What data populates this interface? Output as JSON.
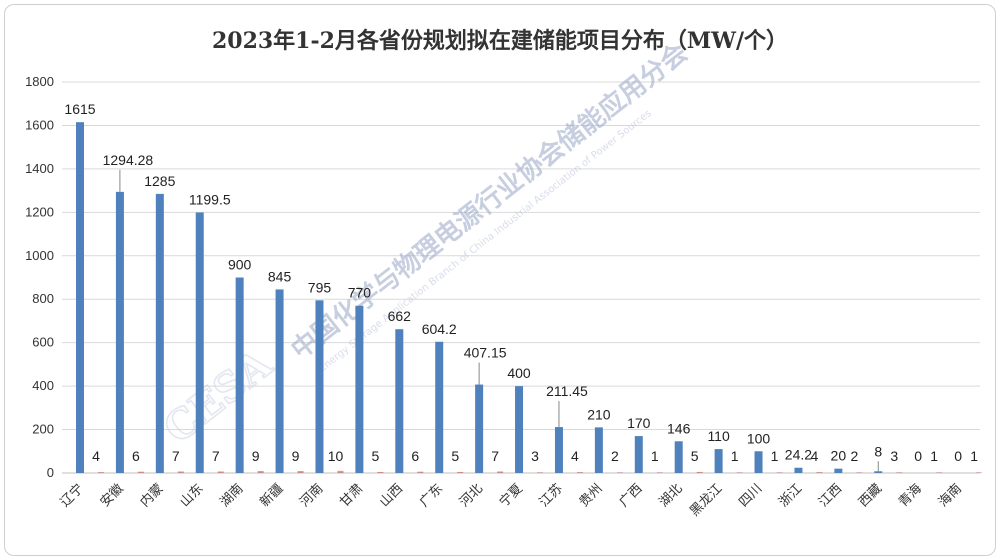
{
  "chart_data": {
    "type": "bar",
    "title": "2023年1-2月各省份规划拟在建储能项目分布（MW/个）",
    "xlabel": "",
    "ylabel": "",
    "ylim": [
      0,
      1800
    ],
    "yticks": [
      0,
      200,
      400,
      600,
      800,
      1000,
      1200,
      1400,
      1600,
      1800
    ],
    "grid": true,
    "legend": "none",
    "categories": [
      "辽宁",
      "安徽",
      "内蒙",
      "山东",
      "湖南",
      "新疆",
      "河南",
      "甘肃",
      "山西",
      "广东",
      "河北",
      "宁夏",
      "江苏",
      "贵州",
      "广西",
      "湖北",
      "黑龙江",
      "四川",
      "浙江",
      "江西",
      "西藏",
      "青海",
      "海南"
    ],
    "series": [
      {
        "color": "#4f81bd",
        "values": [
          1615,
          1294.28,
          1285,
          1199.5,
          900,
          845,
          795,
          770,
          662,
          604.2,
          407.15,
          400,
          211.45,
          210,
          170,
          146,
          110,
          100,
          24.2,
          20,
          8,
          0,
          0
        ],
        "labels": [
          "1615",
          "1294.28",
          "1285",
          "1199.5",
          "900",
          "845",
          "795",
          "770",
          "662",
          "604.2",
          "407.15",
          "400",
          "211.45",
          "210",
          "170",
          "146",
          "110",
          "100",
          "24.2",
          "20",
          "8",
          "0",
          "0"
        ]
      },
      {
        "color": "#c0504d",
        "values": [
          4,
          6,
          7,
          7,
          9,
          9,
          10,
          5,
          6,
          5,
          7,
          3,
          4,
          2,
          1,
          5,
          1,
          1,
          4,
          2,
          3,
          1,
          1
        ],
        "labels": [
          "4",
          "6",
          "7",
          "7",
          "9",
          "9",
          "10",
          "5",
          "6",
          "5",
          "7",
          "3",
          "4",
          "2",
          "1",
          "5",
          "1",
          "1",
          "4",
          "2",
          "3",
          "1",
          "1"
        ]
      }
    ]
  },
  "watermark": {
    "logo": "CESA",
    "text": "中国化学与物理电源行业协会储能应用分会",
    "subtext": "Energy Storage Application Branch of China Industrial Association of Power Sources"
  }
}
